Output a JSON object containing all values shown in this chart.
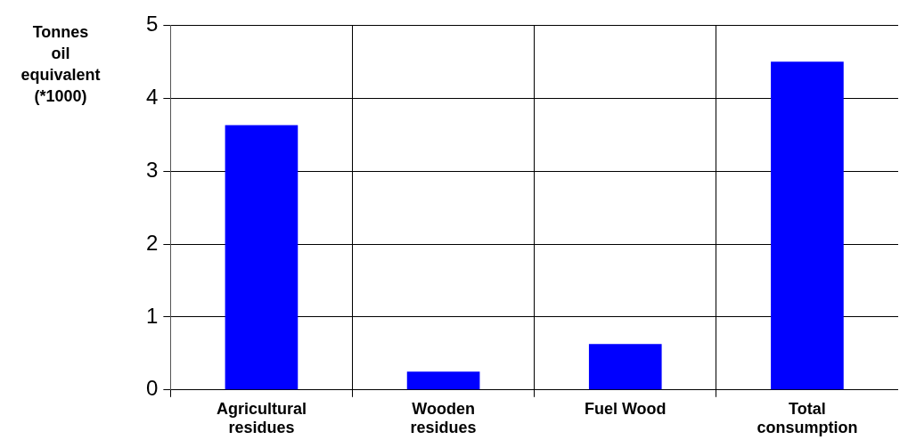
{
  "chart_data": {
    "type": "bar",
    "ylabel": "Tonnes oil equivalent (*1000)",
    "categories": [
      "Agricultural residues",
      "Wooden residues",
      "Fuel Wood",
      "Total consumption"
    ],
    "values": [
      3.63,
      0.25,
      0.63,
      4.5
    ],
    "color": "#0000ff",
    "ylim": [
      0,
      5
    ],
    "yticks": [
      0,
      1,
      2,
      3,
      4,
      5
    ],
    "grid": true,
    "legend": false
  }
}
